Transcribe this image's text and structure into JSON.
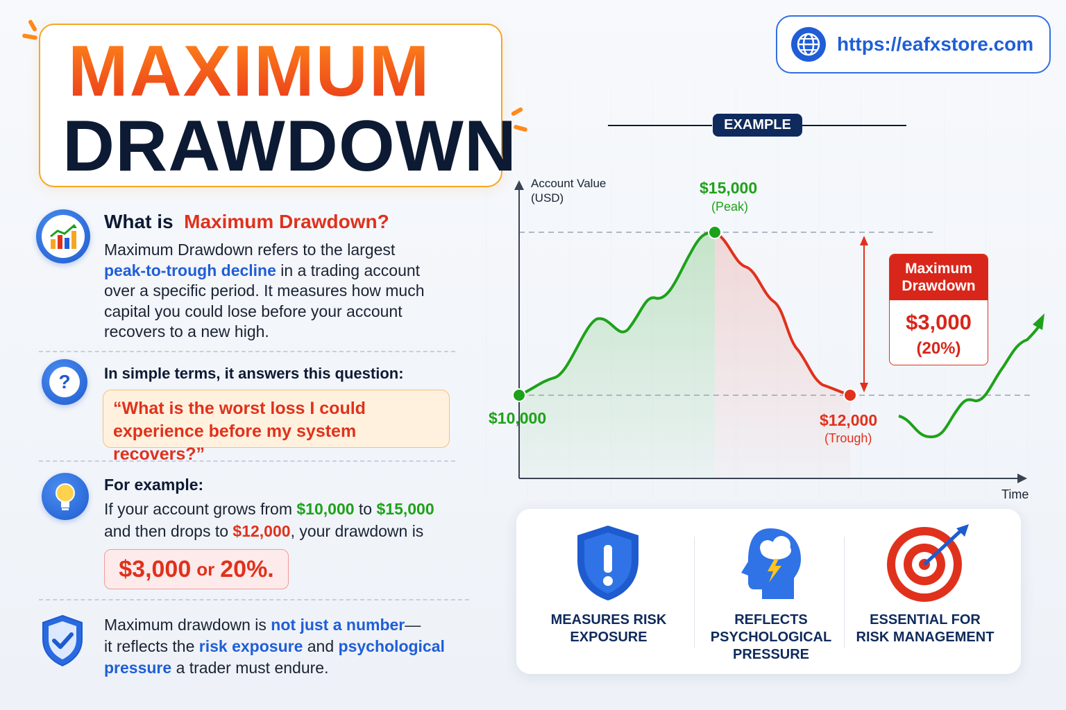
{
  "title": {
    "line1": "MAXIMUM",
    "line2": "DRAWDOWN"
  },
  "website": {
    "url": "https://eafxstore.com",
    "icon": "globe-icon"
  },
  "what_is": {
    "heading_prefix": "What is",
    "heading_highlight": "Maximum Drawdown?",
    "text_1": "Maximum Drawdown refers to the largest",
    "text_highlight": "peak-to-trough decline",
    "text_2": "in a trading account",
    "text_3": "over a specific period. It measures how much",
    "text_4": "capital you could lose before your account",
    "text_5": "recovers to a new high.",
    "icon": "chart-growth-icon"
  },
  "simple_terms": {
    "heading": "In simple terms, it answers this question:",
    "quote_line1": "“What is the worst loss I could",
    "quote_line2": "experience before my system recovers?”",
    "icon": "question-bubble-icon"
  },
  "for_example": {
    "heading": "For example:",
    "text_1": "If your account grows from",
    "start": "$10,000",
    "to": "to",
    "peak": "$15,000",
    "text_2": "and then drops to",
    "trough": "$12,000",
    "text_3": ", your drawdown is",
    "result_amount": "$3,000",
    "result_or": "or",
    "result_pct": "20%.",
    "icon": "lightbulb-icon"
  },
  "footer_note": {
    "text_1": "Maximum drawdown is",
    "hl_1": "not just a number",
    "text_2": "—",
    "text_3": "it reflects the",
    "hl_2": "risk exposure",
    "text_4": "and",
    "hl_3": "psychological",
    "hl_4": "pressure",
    "text_5": "a trader must endure.",
    "icon": "shield-check-icon"
  },
  "example_tag": "EXAMPLE",
  "chart": {
    "y_axis_label_1": "Account Value",
    "y_axis_label_2": "(USD)",
    "x_axis_label": "Time",
    "start_label": "$10,000",
    "peak_label": "$15,000",
    "peak_sub": "(Peak)",
    "trough_label": "$12,000",
    "trough_sub": "(Trough)",
    "drawdown_title_1": "Maximum",
    "drawdown_title_2": "Drawdown",
    "drawdown_value": "$3,000",
    "drawdown_pct": "(20%)",
    "colors": {
      "rise": "#1ea11a",
      "fall": "#e0311c"
    }
  },
  "chart_data": {
    "type": "line",
    "xlabel": "Time",
    "ylabel": "Account Value (USD)",
    "points": [
      {
        "label": "Start",
        "value": 10000
      },
      {
        "label": "Peak",
        "value": 15000
      },
      {
        "label": "Trough",
        "value": 12000
      }
    ],
    "annotations": [
      {
        "text": "Maximum Drawdown",
        "value": "$3,000",
        "pct": "(20%)"
      }
    ]
  },
  "benefits": [
    {
      "label_1": "MEASURES RISK",
      "label_2": "EXPOSURE",
      "label_3": "",
      "icon": "shield-exclamation-icon"
    },
    {
      "label_1": "REFLECTS",
      "label_2": "PSYCHOLOGICAL",
      "label_3": "PRESSURE",
      "icon": "head-storm-icon"
    },
    {
      "label_1": "ESSENTIAL FOR",
      "label_2": "RISK MANAGEMENT",
      "label_3": "",
      "icon": "target-icon"
    }
  ]
}
